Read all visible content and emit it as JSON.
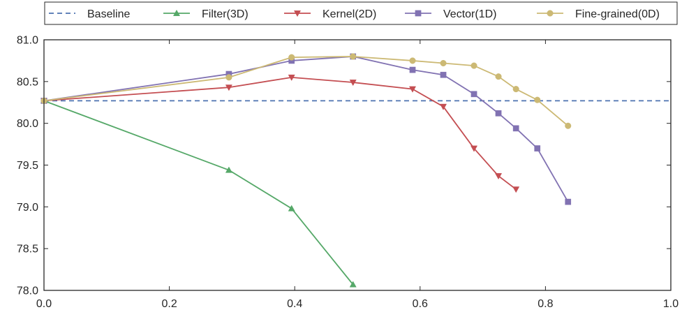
{
  "chart_data": {
    "type": "line",
    "xlim": [
      0.0,
      1.0
    ],
    "ylim": [
      78.0,
      81.0
    ],
    "x_ticks": [
      "0.0",
      "0.2",
      "0.4",
      "0.6",
      "0.8",
      "1.0"
    ],
    "y_ticks": [
      "78.0",
      "78.5",
      "79.0",
      "79.5",
      "80.0",
      "80.5",
      "81.0"
    ],
    "grid": false,
    "legend_position": "top, outside plot, single row",
    "series": [
      {
        "name": "Baseline",
        "style": "dashed",
        "marker": "none",
        "color": "#4c72b0",
        "x": [
          0.0,
          1.0
        ],
        "y": [
          80.27,
          80.27
        ]
      },
      {
        "name": "Filter(3D)",
        "style": "solid",
        "marker": "triangle-up",
        "color": "#55a868",
        "x": [
          0.0,
          0.295,
          0.395,
          0.493
        ],
        "y": [
          80.27,
          79.44,
          78.98,
          78.07
        ]
      },
      {
        "name": "Kernel(2D)",
        "style": "solid",
        "marker": "triangle-down",
        "color": "#c44e52",
        "x": [
          0.0,
          0.295,
          0.395,
          0.493,
          0.588,
          0.637,
          0.686,
          0.725,
          0.753
        ],
        "y": [
          80.27,
          80.43,
          80.55,
          80.49,
          80.41,
          80.2,
          79.7,
          79.37,
          79.21
        ]
      },
      {
        "name": "Vector(1D)",
        "style": "solid",
        "marker": "square",
        "color": "#8172b2",
        "x": [
          0.0,
          0.295,
          0.395,
          0.493,
          0.588,
          0.637,
          0.686,
          0.725,
          0.753,
          0.787,
          0.836
        ],
        "y": [
          80.27,
          80.59,
          80.75,
          80.8,
          80.64,
          80.58,
          80.35,
          80.12,
          79.94,
          79.7,
          79.06
        ]
      },
      {
        "name": "Fine-grained(0D)",
        "style": "solid",
        "marker": "circle",
        "color": "#ccb974",
        "x": [
          0.0,
          0.295,
          0.395,
          0.493,
          0.588,
          0.637,
          0.686,
          0.725,
          0.753,
          0.787,
          0.836
        ],
        "y": [
          80.27,
          80.55,
          80.79,
          80.8,
          80.75,
          80.72,
          80.69,
          80.56,
          80.41,
          80.28,
          79.97
        ]
      }
    ]
  }
}
